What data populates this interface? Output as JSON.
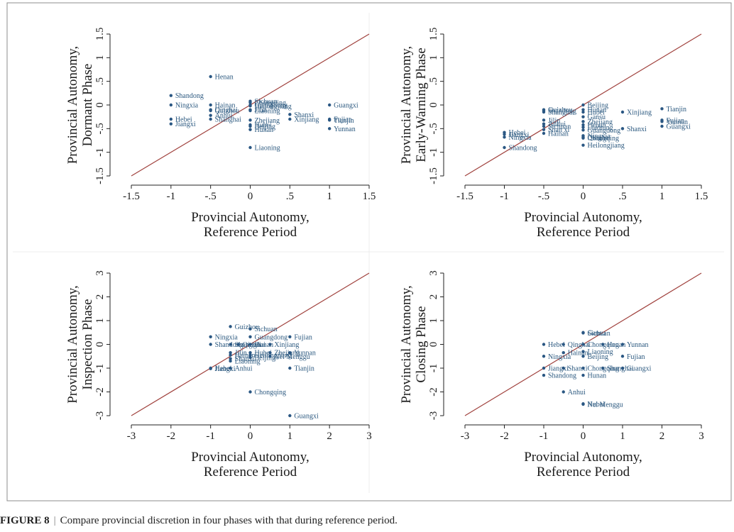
{
  "caption": {
    "label": "FIGURE 8",
    "separator": "|",
    "text": "Compare provincial discretion in four phases with that during reference period."
  },
  "colors": {
    "points": "#2a5783",
    "labels": "#2d5a80",
    "diagonal": "#a0413d",
    "frame": "#8c8c8c",
    "axis": "#222222"
  },
  "chart_data": [
    {
      "type": "scatter",
      "title": "",
      "xlabel": [
        "Provincial Autonomy,",
        "Reference Period"
      ],
      "ylabel": [
        "Provincial Autonomy,",
        "Dormant Phase"
      ],
      "xlim": [
        -1.5,
        1.5
      ],
      "ylim": [
        -1.5,
        1.5
      ],
      "xticks": [
        -1.5,
        -1,
        -0.5,
        0,
        0.5,
        1,
        1.5
      ],
      "xtick_labels": [
        "-1.5",
        "-1",
        "-.5",
        "0",
        ".5",
        "1",
        "1.5"
      ],
      "yticks": [
        -1.5,
        -1,
        -0.5,
        0,
        0.5,
        1,
        1.5
      ],
      "ytick_labels": [
        "-1.5",
        "-1",
        "-.5",
        "0",
        ".5",
        "1",
        "1.5"
      ],
      "reference_line": "y = x",
      "grid": false,
      "points": [
        {
          "label": "Henan",
          "x": -0.5,
          "y": 0.6
        },
        {
          "label": "Shandong",
          "x": -1,
          "y": 0.2
        },
        {
          "label": "Ningxia",
          "x": -1,
          "y": 0
        },
        {
          "label": "Hebei",
          "x": -1,
          "y": -0.3
        },
        {
          "label": "Jiangxi",
          "x": -1,
          "y": -0.4
        },
        {
          "label": "Hainan",
          "x": -0.5,
          "y": 0
        },
        {
          "label": "Qinghai",
          "x": -0.5,
          "y": -0.1
        },
        {
          "label": "Guizhou",
          "x": -0.5,
          "y": -0.12
        },
        {
          "label": "Anhui",
          "x": -0.5,
          "y": -0.22
        },
        {
          "label": "Shanghai",
          "x": -0.5,
          "y": -0.3
        },
        {
          "label": "Sichuan",
          "x": 0,
          "y": 0.08
        },
        {
          "label": "Chongqing",
          "x": 0,
          "y": 0.05
        },
        {
          "label": "Guangdong",
          "x": 0,
          "y": 0
        },
        {
          "label": "Heilongjiang",
          "x": 0,
          "y": -0.02
        },
        {
          "label": "Jilin",
          "x": 0,
          "y": -0.1
        },
        {
          "label": "Liaoning",
          "x": 0,
          "y": -0.12
        },
        {
          "label": "Zhejiang",
          "x": 0,
          "y": -0.32
        },
        {
          "label": "Hubei",
          "x": 0,
          "y": -0.42
        },
        {
          "label": "Beijing",
          "x": 0,
          "y": -0.45
        },
        {
          "label": "Hunan",
          "x": 0,
          "y": -0.52
        },
        {
          "label": "Liaoning",
          "x": 0,
          "y": -0.9
        },
        {
          "label": "Shanxi",
          "x": 0.5,
          "y": -0.2
        },
        {
          "label": "Xinjiang",
          "x": 0.5,
          "y": -0.3
        },
        {
          "label": "Guangxi",
          "x": 1,
          "y": 0
        },
        {
          "label": "Fujian",
          "x": 1,
          "y": -0.3
        },
        {
          "label": "Tianjin",
          "x": 1,
          "y": -0.32
        },
        {
          "label": "Yunnan",
          "x": 1,
          "y": -0.5
        }
      ]
    },
    {
      "type": "scatter",
      "title": "",
      "xlabel": [
        "Provincial Autonomy,",
        "Reference Period"
      ],
      "ylabel": [
        "Provincial Autonomy,",
        "Early-Warning Phase"
      ],
      "xlim": [
        -1.5,
        1.5
      ],
      "ylim": [
        -1.5,
        1.5
      ],
      "xticks": [
        -1.5,
        -1,
        -0.5,
        0,
        0.5,
        1,
        1.5
      ],
      "xtick_labels": [
        "-1.5",
        "-1",
        "-.5",
        "0",
        ".5",
        "1",
        "1.5"
      ],
      "yticks": [
        -1.5,
        -1,
        -0.5,
        0,
        0.5,
        1,
        1.5
      ],
      "ytick_labels": [
        "-1.5",
        "-1",
        "-.5",
        "0",
        ".5",
        "1",
        "1.5"
      ],
      "reference_line": "y = x",
      "grid": false,
      "points": [
        {
          "label": "Guizhou",
          "x": -0.5,
          "y": -0.1
        },
        {
          "label": "Shandong",
          "x": -0.5,
          "y": -0.12
        },
        {
          "label": "Shanghai",
          "x": -0.5,
          "y": -0.15
        },
        {
          "label": "Jilin",
          "x": -0.5,
          "y": -0.32
        },
        {
          "label": "Anhui",
          "x": -0.5,
          "y": -0.4
        },
        {
          "label": "Sichuan",
          "x": -0.5,
          "y": -0.45
        },
        {
          "label": "Shan xi",
          "x": -0.5,
          "y": -0.52
        },
        {
          "label": "Hainan",
          "x": -0.5,
          "y": -0.6
        },
        {
          "label": "Hebei",
          "x": -1,
          "y": -0.58
        },
        {
          "label": "Jiangxi",
          "x": -1,
          "y": -0.62
        },
        {
          "label": "Ningxia",
          "x": -1,
          "y": -0.68
        },
        {
          "label": "Shandong",
          "x": -1,
          "y": -0.9
        },
        {
          "label": "Beijing",
          "x": 0,
          "y": 0
        },
        {
          "label": "Hunan",
          "x": 0,
          "y": -0.1
        },
        {
          "label": "Hubei",
          "x": 0,
          "y": -0.15
        },
        {
          "label": "Gansu",
          "x": 0,
          "y": -0.25
        },
        {
          "label": "Zhejiang",
          "x": 0,
          "y": -0.35
        },
        {
          "label": "Henan",
          "x": 0,
          "y": -0.42
        },
        {
          "label": "Liaoning",
          "x": 0,
          "y": -0.47
        },
        {
          "label": "Guangdong",
          "x": 0,
          "y": -0.53
        },
        {
          "label": "Ningxia",
          "x": 0,
          "y": -0.65
        },
        {
          "label": "Qinghai",
          "x": 0,
          "y": -0.68
        },
        {
          "label": "Chongqing",
          "x": 0,
          "y": -0.7
        },
        {
          "label": "Heilongjiang",
          "x": 0,
          "y": -0.85
        },
        {
          "label": "Xinjiang",
          "x": 0.5,
          "y": -0.15
        },
        {
          "label": "Shanxi",
          "x": 0.5,
          "y": -0.5
        },
        {
          "label": "Tianjin",
          "x": 1,
          "y": -0.08
        },
        {
          "label": "Fujian",
          "x": 1,
          "y": -0.32
        },
        {
          "label": "Yunnan",
          "x": 1,
          "y": -0.35
        },
        {
          "label": "Guangxi",
          "x": 1,
          "y": -0.45
        }
      ]
    },
    {
      "type": "scatter",
      "title": "",
      "xlabel": [
        "Provincial Autonomy,",
        "Reference Period"
      ],
      "ylabel": [
        "Provincial Autonomy,",
        "Inspection Phase"
      ],
      "xlim": [
        -3,
        3
      ],
      "ylim": [
        -3,
        3
      ],
      "xticks": [
        -3,
        -2,
        -1,
        0,
        1,
        2,
        3
      ],
      "xtick_labels": [
        "-3",
        "-2",
        "-1",
        "0",
        "1",
        "2",
        "3"
      ],
      "yticks": [
        -3,
        -2,
        -1,
        0,
        1,
        2,
        3
      ],
      "ytick_labels": [
        "-3",
        "-2",
        "-1",
        "0",
        "1",
        "2",
        "3"
      ],
      "reference_line": "y = x",
      "grid": false,
      "points": [
        {
          "label": "Guizhou",
          "x": -0.5,
          "y": 0.75
        },
        {
          "label": "Sichuan",
          "x": 0,
          "y": 0.65
        },
        {
          "label": "Ningxia",
          "x": -1,
          "y": 0.32
        },
        {
          "label": "Shandong",
          "x": -1,
          "y": 0
        },
        {
          "label": "Guangdong",
          "x": 0,
          "y": 0.32
        },
        {
          "label": "Fujian",
          "x": 1,
          "y": 0.32
        },
        {
          "label": "Shanghai",
          "x": -0.5,
          "y": 0
        },
        {
          "label": "Qinghai",
          "x": -0.3,
          "y": 0
        },
        {
          "label": "Hunan",
          "x": 0,
          "y": 0
        },
        {
          "label": "Xinjiang",
          "x": 0.5,
          "y": 0
        },
        {
          "label": "Jilin",
          "x": -0.5,
          "y": -0.35
        },
        {
          "label": "Hainan",
          "x": -0.5,
          "y": -0.45
        },
        {
          "label": "Shanxi",
          "x": -0.5,
          "y": -0.6
        },
        {
          "label": "Liaoning",
          "x": -0.5,
          "y": -0.7
        },
        {
          "label": "Hubei",
          "x": 0,
          "y": -0.35
        },
        {
          "label": "Heilongjiang",
          "x": 0,
          "y": -0.45
        },
        {
          "label": "Beijing",
          "x": 0,
          "y": -0.55
        },
        {
          "label": "Zhejiang",
          "x": 0.5,
          "y": -0.35
        },
        {
          "label": "Nei Menggu",
          "x": 0.5,
          "y": -0.5
        },
        {
          "label": "Yunnan",
          "x": 1,
          "y": -0.35
        },
        {
          "label": "Hebei",
          "x": -1,
          "y": -1
        },
        {
          "label": "Jiangxi",
          "x": -1,
          "y": -1.02
        },
        {
          "label": "Anhui",
          "x": -0.5,
          "y": -1
        },
        {
          "label": "Tianjin",
          "x": 1,
          "y": -1
        },
        {
          "label": "Chongqing",
          "x": 0,
          "y": -2
        },
        {
          "label": "Guangxi",
          "x": 1,
          "y": -3
        }
      ]
    },
    {
      "type": "scatter",
      "title": "",
      "xlabel": [
        "Provincial Autonomy,",
        "Reference Period"
      ],
      "ylabel": [
        "Provincial Autonomy,",
        "Closing Phase"
      ],
      "xlim": [
        -3,
        3
      ],
      "ylim": [
        -3,
        3
      ],
      "xticks": [
        -3,
        -2,
        -1,
        0,
        1,
        2,
        3
      ],
      "xtick_labels": [
        "-3",
        "-2",
        "-1",
        "0",
        "1",
        "2",
        "3"
      ],
      "yticks": [
        -3,
        -2,
        -1,
        0,
        1,
        2,
        3
      ],
      "ytick_labels": [
        "-3",
        "-2",
        "-1",
        "0",
        "1",
        "2",
        "3"
      ],
      "reference_line": "y = x",
      "grid": false,
      "points": [
        {
          "label": "Gansu",
          "x": 0,
          "y": 0.5
        },
        {
          "label": "Sichuan",
          "x": 0,
          "y": 0.48
        },
        {
          "label": "Hebei",
          "x": -1,
          "y": 0
        },
        {
          "label": "Qinghai",
          "x": -0.5,
          "y": 0
        },
        {
          "label": "Chongqing",
          "x": 0,
          "y": 0
        },
        {
          "label": "Henan",
          "x": 0.5,
          "y": 0
        },
        {
          "label": "Yunnan",
          "x": 1,
          "y": 0
        },
        {
          "label": "Ningxia",
          "x": -1,
          "y": -0.5
        },
        {
          "label": "Hainan",
          "x": -0.5,
          "y": -0.35
        },
        {
          "label": "Liaoning",
          "x": 0,
          "y": -0.3
        },
        {
          "label": "Beijing",
          "x": 0,
          "y": -0.5
        },
        {
          "label": "Fujian",
          "x": 1,
          "y": -0.5
        },
        {
          "label": "Jiangxi",
          "x": -1,
          "y": -1
        },
        {
          "label": "Shanxi",
          "x": -0.5,
          "y": -1
        },
        {
          "label": "Chongqing",
          "x": 0,
          "y": -1
        },
        {
          "label": "Shanghai",
          "x": 0.5,
          "y": -1
        },
        {
          "label": "Guangxi",
          "x": 1,
          "y": -1
        },
        {
          "label": "Shandong",
          "x": -1,
          "y": -1.3
        },
        {
          "label": "Hunan",
          "x": 0,
          "y": -1.3
        },
        {
          "label": "Anhui",
          "x": -0.5,
          "y": -2
        },
        {
          "label": "Hubei",
          "x": 0,
          "y": -2.5
        },
        {
          "label": "Nei Menggu",
          "x": 0,
          "y": -2.52
        }
      ]
    }
  ]
}
